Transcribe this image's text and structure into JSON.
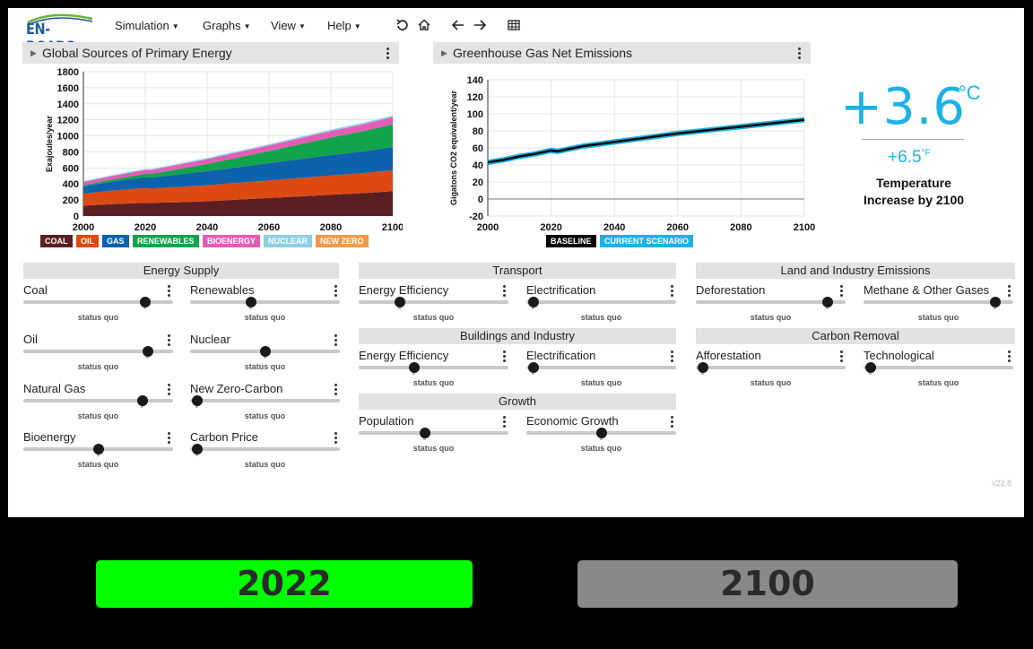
{
  "app": {
    "logo": "EN-ROADS",
    "version": "v22.8"
  },
  "menus": [
    {
      "label": "Simulation"
    },
    {
      "label": "Graphs"
    },
    {
      "label": "View"
    },
    {
      "label": "Help"
    }
  ],
  "toolbar_icons": [
    "undo-icon",
    "home-icon",
    "back-arrow-icon",
    "forward-arrow-icon",
    "table-icon"
  ],
  "graph1": {
    "title": "Global Sources of Primary Energy",
    "chart_data": {
      "type": "area",
      "ylabel": "Exajoules/year",
      "x": [
        2000,
        2010,
        2020,
        2022,
        2030,
        2040,
        2050,
        2060,
        2070,
        2080,
        2090,
        2100
      ],
      "ylim": [
        0,
        1800
      ],
      "yticks": [
        0,
        200,
        400,
        600,
        800,
        1000,
        1200,
        1400,
        1600,
        1800
      ],
      "xticks": [
        2000,
        2020,
        2040,
        2060,
        2080,
        2100
      ],
      "series": [
        {
          "name": "COAL",
          "color": "#5b1f23",
          "values": [
            130,
            150,
            165,
            165,
            170,
            185,
            205,
            225,
            245,
            265,
            285,
            310
          ]
        },
        {
          "name": "OIL",
          "color": "#dc4a12",
          "values": [
            150,
            170,
            185,
            180,
            190,
            200,
            210,
            220,
            230,
            240,
            250,
            260
          ]
        },
        {
          "name": "GAS",
          "color": "#0d61ad",
          "values": [
            90,
            115,
            135,
            135,
            155,
            175,
            195,
            215,
            235,
            255,
            270,
            290
          ]
        },
        {
          "name": "RENEWABLES",
          "color": "#12a44b",
          "values": [
            15,
            25,
            40,
            45,
            65,
            90,
            120,
            150,
            185,
            220,
            250,
            285
          ]
        },
        {
          "name": "BIOENERGY",
          "color": "#e35db7",
          "values": [
            40,
            45,
            50,
            50,
            55,
            60,
            65,
            70,
            75,
            80,
            85,
            90
          ]
        },
        {
          "name": "NUCLEAR",
          "color": "#8ed0e4",
          "values": [
            10,
            10,
            12,
            12,
            13,
            14,
            15,
            16,
            17,
            18,
            19,
            20
          ]
        },
        {
          "name": "NEW ZERO",
          "color": "#f3994b",
          "values": [
            0,
            0,
            0,
            0,
            0,
            0,
            0,
            0,
            0,
            0,
            0,
            0
          ]
        }
      ]
    }
  },
  "graph2": {
    "title": "Greenhouse Gas Net Emissions",
    "chart_data": {
      "type": "line",
      "ylabel": "Gigatons CO2 equivalent/year",
      "x": [
        2000,
        2005,
        2010,
        2015,
        2020,
        2022,
        2030,
        2040,
        2050,
        2060,
        2070,
        2080,
        2090,
        2100
      ],
      "ylim": [
        -20,
        140
      ],
      "yticks": [
        -20,
        0,
        20,
        40,
        60,
        80,
        100,
        120,
        140
      ],
      "xticks": [
        2000,
        2020,
        2040,
        2060,
        2080,
        2100
      ],
      "series": [
        {
          "name": "BASELINE",
          "color": "#000000",
          "values": [
            43,
            46,
            50,
            53,
            57,
            56,
            62,
            67,
            72,
            77,
            81,
            85,
            89,
            93
          ]
        },
        {
          "name": "CURRENT SCENARIO",
          "color": "#1ab3e6",
          "values": [
            43,
            46,
            50,
            53,
            57,
            56,
            62,
            67,
            72,
            77,
            81,
            85,
            89,
            93
          ]
        }
      ]
    }
  },
  "temperature": {
    "celsius": "+3.6",
    "celsius_unit": "°C",
    "fahrenheit": "+6.5",
    "fahrenheit_unit": "°F",
    "label": "Temperature Increase by 2100"
  },
  "sections": {
    "energy_supply": "Energy Supply",
    "transport": "Transport",
    "buildings": "Buildings and Industry",
    "growth": "Growth",
    "land": "Land and Industry Emissions",
    "carbon_removal": "Carbon Removal"
  },
  "status_quo": "status quo",
  "controls": [
    {
      "name": "Coal",
      "value": 0.85
    },
    {
      "name": "Renewables",
      "value": 0.4
    },
    {
      "name": "Oil",
      "value": 0.87
    },
    {
      "name": "Nuclear",
      "value": 0.5
    },
    {
      "name": "Natural Gas",
      "value": 0.83
    },
    {
      "name": "New Zero-Carbon",
      "value": 0.0
    },
    {
      "name": "Bioenergy",
      "value": 0.5
    },
    {
      "name": "Carbon Price",
      "value": 0.0
    },
    {
      "name": "Energy Efficiency",
      "value": 0.25
    },
    {
      "name": "Electrification",
      "value": 0.0
    },
    {
      "name": "Energy Efficiency",
      "value": 0.36
    },
    {
      "name": "Electrification",
      "value": 0.0
    },
    {
      "name": "Population",
      "value": 0.44
    },
    {
      "name": "Economic Growth",
      "value": 0.5
    },
    {
      "name": "Deforestation",
      "value": 0.92
    },
    {
      "name": "Methane & Other Gases",
      "value": 0.92
    },
    {
      "name": "Afforestation",
      "value": 0.0
    },
    {
      "name": "Technological",
      "value": 0.0
    }
  ],
  "year_buttons": {
    "start": "2022",
    "end": "2100",
    "start_color": "#00ff00",
    "end_color": "#888888"
  }
}
